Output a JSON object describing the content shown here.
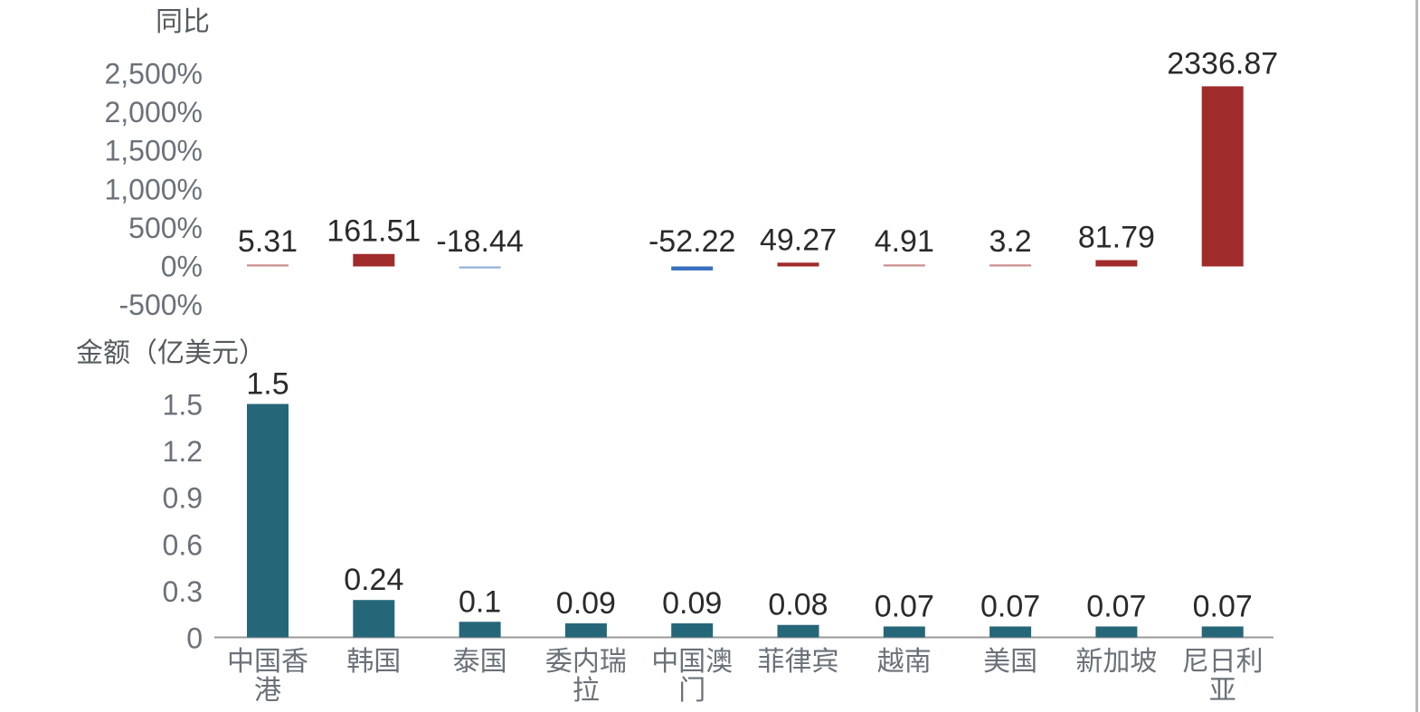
{
  "chart_data": [
    {
      "type": "bar",
      "ylabel": "同比",
      "ylim": [
        -500,
        2500
      ],
      "yticks": [
        "2,500%",
        "2,000%",
        "1,500%",
        "1,000%",
        "500%",
        "0%",
        "-500%"
      ],
      "categories": [
        "中国香港",
        "韩国",
        "泰国",
        "委内瑞拉",
        "中国澳门",
        "菲律宾",
        "越南",
        "美国",
        "新加坡",
        "尼日利亚"
      ],
      "values": [
        5.31,
        161.51,
        -18.44,
        null,
        -52.22,
        49.27,
        4.91,
        3.2,
        81.79,
        2336.87
      ],
      "value_labels": [
        "5.31",
        "161.51",
        "-18.44",
        "",
        "-52.22",
        "49.27",
        "4.91",
        "3.2",
        "81.79",
        "2336.87"
      ],
      "colors": {
        "positive": "#a02b2b",
        "negative": "#3a6fbf"
      }
    },
    {
      "type": "bar",
      "ylabel": "金额（亿美元）",
      "ylim": [
        0,
        1.5
      ],
      "yticks": [
        "1.5",
        "1.2",
        "0.9",
        "0.6",
        "0.3",
        "0"
      ],
      "categories": [
        "中国香港",
        "韩国",
        "泰国",
        "委内瑞拉",
        "中国澳门",
        "菲律宾",
        "越南",
        "美国",
        "新加坡",
        "尼日利亚"
      ],
      "category_lines": [
        [
          "中国香",
          "港"
        ],
        [
          "韩国"
        ],
        [
          "泰国"
        ],
        [
          "委内瑞",
          "拉"
        ],
        [
          "中国澳",
          "门"
        ],
        [
          "菲律宾"
        ],
        [
          "越南"
        ],
        [
          "美国"
        ],
        [
          "新加坡"
        ],
        [
          "尼日利",
          "亚"
        ]
      ],
      "values": [
        1.5,
        0.24,
        0.1,
        0.09,
        0.09,
        0.08,
        0.07,
        0.07,
        0.07,
        0.07
      ],
      "value_labels": [
        "1.5",
        "0.24",
        "0.1",
        "0.09",
        "0.09",
        "0.08",
        "0.07",
        "0.07",
        "0.07",
        "0.07"
      ],
      "colors": {
        "bar": "#256778"
      }
    }
  ]
}
